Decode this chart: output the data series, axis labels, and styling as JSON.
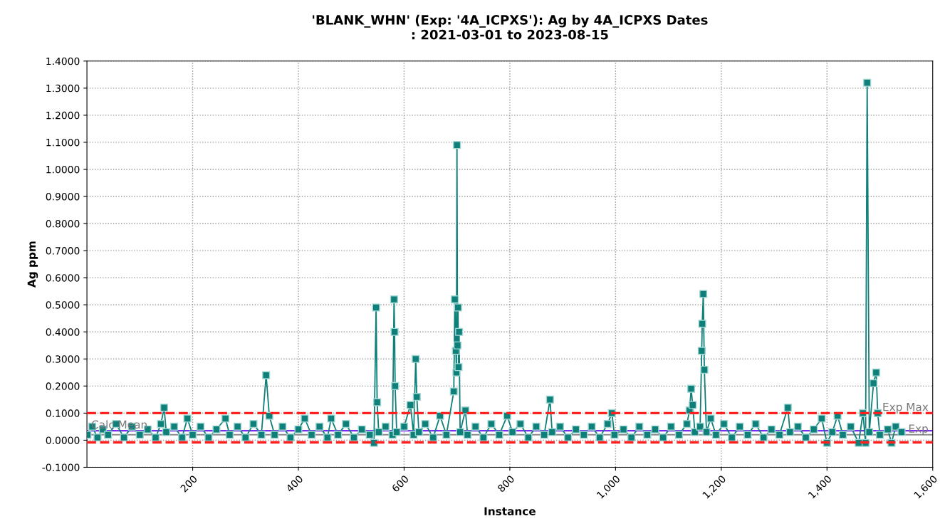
{
  "chart_data": {
    "type": "line",
    "title": "'BLANK_WHN' (Exp: '4A_ICPXS'): Ag by 4A_ICPXS Dates\n: 2021-03-01 to 2023-08-15",
    "xlabel": "Instance",
    "ylabel": "Ag ppm",
    "marker": "square",
    "line_style": "solid",
    "grid": true,
    "legend": false,
    "xlim": [
      0,
      1600
    ],
    "xticks": [
      200,
      400,
      600,
      800,
      {
        "value": 1000,
        "label": "1,000"
      },
      {
        "value": 1200,
        "label": "1,200"
      },
      {
        "value": 1400,
        "label": "1,400"
      },
      {
        "value": 1600,
        "label": "1,600"
      }
    ],
    "ylim": [
      -0.1,
      1.4
    ],
    "yticks": [
      {
        "value": -0.1,
        "label": "-0.1000"
      },
      {
        "value": 0,
        "label": "0.0000"
      },
      {
        "value": 0.1,
        "label": "0.1000"
      },
      {
        "value": 0.2,
        "label": "0.2000"
      },
      {
        "value": 0.3,
        "label": "0.3000"
      },
      {
        "value": 0.4,
        "label": "0.4000"
      },
      {
        "value": 0.5,
        "label": "0.5000"
      },
      {
        "value": 0.6,
        "label": "0.6000"
      },
      {
        "value": 0.7,
        "label": "0.7000"
      },
      {
        "value": 0.8,
        "label": "0.8000"
      },
      {
        "value": 0.9,
        "label": "0.9000"
      },
      {
        "value": 1.0,
        "label": "1.0000"
      },
      {
        "value": 1.1,
        "label": "1.1000"
      },
      {
        "value": 1.2,
        "label": "1.2000"
      },
      {
        "value": 1.3,
        "label": "1.3000"
      },
      {
        "value": 1.4,
        "label": "1.4000"
      }
    ],
    "ref_lines": [
      {
        "axis": "y",
        "value": 0.1,
        "label": "Exp Max",
        "color": "#ff2020",
        "line_style": "dashed"
      },
      {
        "axis": "y",
        "value": 0.035,
        "label": "Calc Mean",
        "color": "#7b2cf0",
        "line_style": "solid"
      },
      {
        "axis": "y",
        "value": 0.02,
        "label": "Exp",
        "color": "#8a8a8a",
        "line_style": "solid"
      },
      {
        "axis": "y",
        "value": -0.008,
        "label": null,
        "color": "#ff2020",
        "line_style": "dashed"
      }
    ],
    "series": [
      {
        "color": "#0f7f7a",
        "x": [
          1,
          10,
          20,
          30,
          40,
          55,
          70,
          85,
          100,
          115,
          130,
          140,
          146,
          150,
          165,
          180,
          190,
          200,
          215,
          230,
          245,
          262,
          270,
          285,
          300,
          315,
          330,
          339,
          345,
          355,
          370,
          385,
          400,
          412,
          425,
          440,
          455,
          462,
          475,
          490,
          505,
          520,
          535,
          543,
          547,
          549,
          552,
          565,
          578,
          581,
          582,
          583,
          586,
          600,
          612,
          618,
          622,
          624,
          628,
          640,
          655,
          668,
          680,
          694,
          696,
          698,
          699,
          700,
          701,
          702,
          703,
          704,
          706,
          716,
          720,
          735,
          750,
          765,
          780,
          795,
          805,
          820,
          835,
          850,
          865,
          876,
          880,
          895,
          910,
          925,
          940,
          955,
          970,
          985,
          993,
          998,
          1015,
          1030,
          1045,
          1060,
          1075,
          1090,
          1105,
          1120,
          1135,
          1140,
          1143,
          1146,
          1150,
          1160,
          1163,
          1164,
          1166,
          1168,
          1172,
          1180,
          1190,
          1205,
          1220,
          1235,
          1250,
          1265,
          1280,
          1295,
          1310,
          1326,
          1330,
          1345,
          1360,
          1375,
          1390,
          1400,
          1410,
          1420,
          1430,
          1445,
          1460,
          1468,
          1473,
          1476,
          1480,
          1488,
          1493,
          1496,
          1500,
          1515,
          1522,
          1530,
          1541
        ],
        "values": [
          0.02,
          0.05,
          0.01,
          0.04,
          0.02,
          0.06,
          0.01,
          0.05,
          0.02,
          0.04,
          0.01,
          0.06,
          0.12,
          0.03,
          0.05,
          0.01,
          0.08,
          0.02,
          0.05,
          0.01,
          0.04,
          0.08,
          0.02,
          0.05,
          0.01,
          0.06,
          0.02,
          0.24,
          0.09,
          0.02,
          0.05,
          0.01,
          0.04,
          0.08,
          0.02,
          0.05,
          0.01,
          0.08,
          0.02,
          0.06,
          0.01,
          0.04,
          0.02,
          -0.01,
          0.49,
          0.14,
          0.03,
          0.05,
          0.02,
          0.52,
          0.4,
          0.2,
          0.03,
          0.05,
          0.13,
          0.02,
          0.3,
          0.16,
          0.03,
          0.06,
          0.01,
          0.09,
          0.02,
          0.18,
          0.52,
          0.33,
          0.25,
          1.09,
          0.35,
          0.49,
          0.27,
          0.4,
          0.03,
          0.11,
          0.02,
          0.05,
          0.01,
          0.06,
          0.02,
          0.09,
          0.03,
          0.06,
          0.01,
          0.05,
          0.02,
          0.15,
          0.03,
          0.05,
          0.01,
          0.04,
          0.02,
          0.05,
          0.01,
          0.06,
          0.1,
          0.02,
          0.04,
          0.01,
          0.05,
          0.02,
          0.04,
          0.01,
          0.05,
          0.02,
          0.06,
          0.11,
          0.19,
          0.13,
          0.03,
          0.05,
          0.33,
          0.43,
          0.54,
          0.26,
          0.03,
          0.08,
          0.02,
          0.06,
          0.01,
          0.05,
          0.02,
          0.06,
          0.01,
          0.04,
          0.02,
          0.12,
          0.03,
          0.05,
          0.01,
          0.04,
          0.08,
          -0.01,
          0.03,
          0.09,
          0.02,
          0.05,
          -0.01,
          0.1,
          -0.01,
          1.32,
          0.03,
          0.21,
          0.25,
          0.1,
          0.02,
          0.04,
          -0.01,
          0.05,
          0.03
        ]
      }
    ]
  }
}
